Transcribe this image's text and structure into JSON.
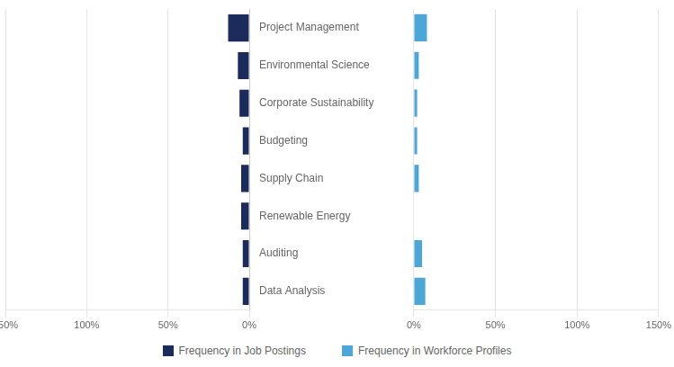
{
  "chart_data": {
    "type": "bar",
    "orientation": "horizontal",
    "categories": [
      "Project Management",
      "Environmental Science",
      "Corporate Sustainability",
      "Budgeting",
      "Supply Chain",
      "Renewable Energy",
      "Auditing",
      "Data Analysis"
    ],
    "series": [
      {
        "name": "Frequency in Job Postings",
        "color": "#1a2b5c",
        "values": [
          13,
          7,
          6,
          4,
          5,
          5,
          4,
          4
        ]
      },
      {
        "name": "Frequency in Workforce Profiles",
        "color": "#4da6d8",
        "values": [
          8,
          3,
          2,
          2,
          3,
          0,
          5,
          7
        ]
      }
    ],
    "xlim": [
      0,
      150
    ],
    "xticks": [
      {
        "value": 0,
        "label": "0%"
      },
      {
        "value": 50,
        "label": "50%"
      },
      {
        "value": 100,
        "label": "100%"
      },
      {
        "value": 150,
        "label": "150%"
      }
    ],
    "grid": true,
    "legend": "bottom"
  }
}
